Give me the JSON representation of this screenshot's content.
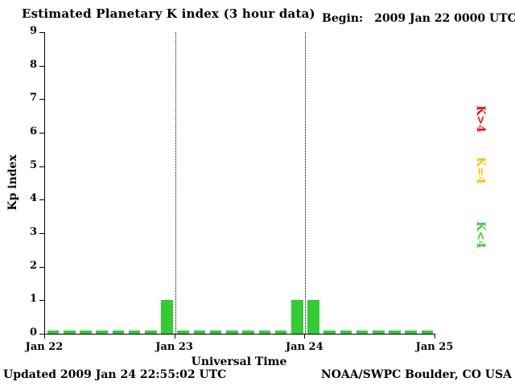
{
  "chart_data": {
    "type": "bar",
    "title": "Estimated Planetary K index (3 hour data)",
    "begin_label": "Begin:",
    "begin_value": "2009 Jan 22 0000 UTC",
    "xlabel": "Universal Time",
    "ylabel": "Kp index",
    "ylim": [
      0,
      9
    ],
    "yticks": [
      0,
      1,
      2,
      3,
      4,
      5,
      6,
      7,
      8,
      9
    ],
    "x_tick_labels": [
      "Jan 22",
      "Jan 23",
      "Jan 24",
      "Jan 25"
    ],
    "bars_per_day": 8,
    "interval_hours": 3,
    "values": [
      0,
      0,
      0,
      0,
      0,
      0,
      0,
      1,
      0,
      0,
      0,
      0,
      0,
      0,
      0,
      1,
      1,
      0,
      0,
      0,
      0,
      0,
      0,
      0
    ],
    "grid": "vertical-dotted",
    "gridlines_at": [
      "Jan 23",
      "Jan 24"
    ],
    "colors": {
      "low": "#33cc33",
      "mid": "#ffbf00",
      "high": "#ff0000"
    },
    "legend": [
      {
        "label": "K>4",
        "color": "#ff0000"
      },
      {
        "label": "K=4",
        "color": "#ffbf00"
      },
      {
        "label": "K<4",
        "color": "#33cc33"
      }
    ]
  },
  "footer": {
    "updated": "Updated 2009 Jan 24 22:55:02 UTC",
    "source": "NOAA/SWPC Boulder, CO USA"
  }
}
